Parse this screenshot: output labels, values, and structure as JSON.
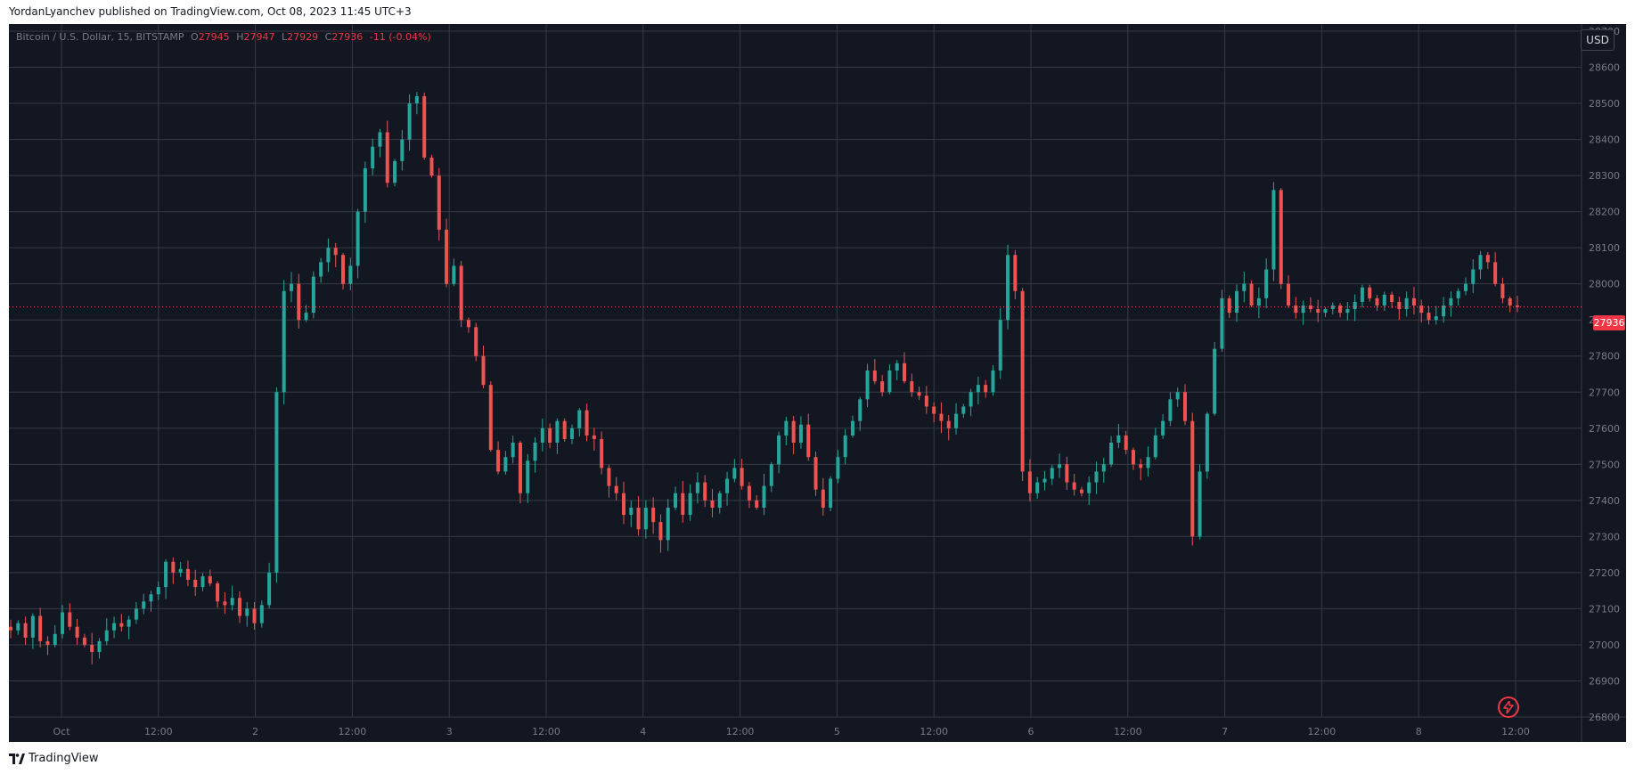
{
  "header": {
    "publish_line": "YordanLyanchev published on TradingView.com, Oct 08, 2023 11:45 UTC+3"
  },
  "legend": {
    "symbol": "Bitcoin / U.S. Dollar, 15, BITSTAMP",
    "open_key": "O",
    "open": "27945",
    "high_key": "H",
    "high": "27947",
    "low_key": "L",
    "low": "27929",
    "close_key": "C",
    "close": "27936",
    "change": "-11 (-0.04%)"
  },
  "currency_button": "USD",
  "footer": {
    "brand": "TradingView"
  },
  "colors": {
    "background": "#131722",
    "grid": "#363a45",
    "up": "#26a69a",
    "down": "#ef5350",
    "text": "#787b86",
    "accent": "#f23645"
  },
  "icons": {
    "lightning": "lightning-icon",
    "logo": "tradingview-logo-icon"
  },
  "chart_data": {
    "type": "candlestick",
    "interval": "15",
    "exchange": "BITSTAMP",
    "current_price": 27936,
    "current_price_label": "27936",
    "ylim": [
      26800,
      28700
    ],
    "yticks": [
      "28700",
      "28600",
      "28500",
      "28400",
      "28300",
      "28200",
      "28100",
      "28000",
      "27900",
      "27800",
      "27700",
      "27600",
      "27500",
      "27400",
      "27300",
      "27200",
      "27100",
      "27000",
      "26900",
      "26800"
    ],
    "xticks": [
      "Oct",
      "12:00",
      "2",
      "12:00",
      "3",
      "12:00",
      "4",
      "12:00",
      "5",
      "12:00",
      "6",
      "12:00",
      "7",
      "12:00",
      "8",
      "12:00"
    ],
    "grid": true,
    "series": [
      {
        "name": "BTCUSD",
        "close": [
          27040,
          27060,
          27020,
          27080,
          27010,
          27000,
          27030,
          27090,
          27050,
          27020,
          27000,
          26980,
          27010,
          27040,
          27060,
          27050,
          27070,
          27100,
          27120,
          27140,
          27160,
          27230,
          27200,
          27210,
          27180,
          27160,
          27190,
          27170,
          27120,
          27110,
          27130,
          27080,
          27100,
          27060,
          27110,
          27200,
          27700,
          27980,
          28000,
          27900,
          27920,
          28020,
          28060,
          28100,
          28080,
          28000,
          28050,
          28200,
          28320,
          28380,
          28420,
          28280,
          28340,
          28400,
          28500,
          28520,
          28350,
          28300,
          28150,
          28000,
          28050,
          27900,
          27880,
          27800,
          27720,
          27540,
          27480,
          27520,
          27560,
          27420,
          27510,
          27560,
          27600,
          27560,
          27620,
          27570,
          27600,
          27650,
          27580,
          27570,
          27490,
          27440,
          27420,
          27360,
          27380,
          27320,
          27380,
          27340,
          27290,
          27380,
          27420,
          27360,
          27420,
          27450,
          27400,
          27380,
          27420,
          27460,
          27490,
          27440,
          27400,
          27380,
          27440,
          27500,
          27580,
          27620,
          27560,
          27610,
          27520,
          27430,
          27380,
          27460,
          27520,
          27580,
          27620,
          27680,
          27760,
          27730,
          27700,
          27760,
          27780,
          27730,
          27700,
          27690,
          27660,
          27640,
          27620,
          27600,
          27640,
          27660,
          27700,
          27720,
          27700,
          27760,
          27900,
          28080,
          27980,
          27480,
          27420,
          27450,
          27460,
          27490,
          27500,
          27450,
          27430,
          27420,
          27450,
          27480,
          27500,
          27560,
          27580,
          27540,
          27500,
          27490,
          27520,
          27580,
          27620,
          27680,
          27700,
          27620,
          27300,
          27480,
          27640,
          27820,
          27960,
          27920,
          27980,
          28000,
          27940,
          27960,
          28040,
          28260,
          28000,
          27940,
          27920,
          27940,
          27930,
          27920,
          27930,
          27940,
          27920,
          27930,
          27950,
          27990,
          27960,
          27940,
          27970,
          27950,
          27930,
          27960,
          27940,
          27920,
          27900,
          27910,
          27940,
          27960,
          27980,
          28000,
          28040,
          28080,
          28060,
          28000,
          27960,
          27940,
          27936
        ]
      }
    ]
  }
}
